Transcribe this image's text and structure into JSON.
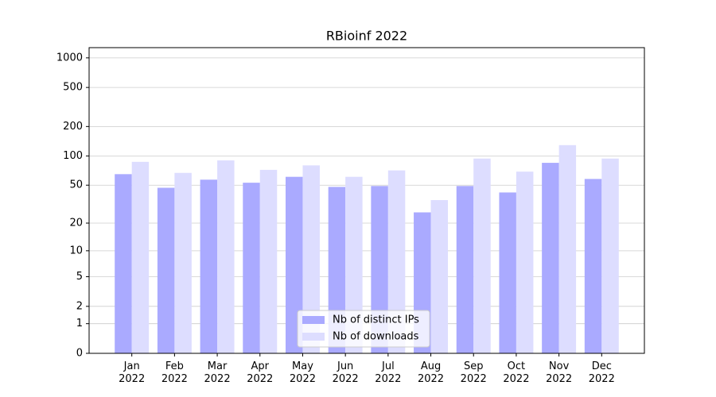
{
  "chart_data": {
    "type": "bar",
    "title": "RBioinf 2022",
    "yscale": "log1p",
    "categories": [
      "Jan 2022",
      "Feb 2022",
      "Mar 2022",
      "Apr 2022",
      "May 2022",
      "Jun 2022",
      "Jul 2022",
      "Aug 2022",
      "Sep 2022",
      "Oct 2022",
      "Nov 2022",
      "Dec 2022"
    ],
    "series": [
      {
        "name": "Nb of distinct IPs",
        "color": "#aaaaff",
        "values": [
          65,
          47,
          57,
          53,
          61,
          48,
          49,
          26,
          49,
          42,
          85,
          58
        ]
      },
      {
        "name": "Nb of downloads",
        "color": "#ddddff",
        "values": [
          87,
          67,
          90,
          72,
          80,
          61,
          71,
          35,
          94,
          69,
          129,
          94
        ]
      }
    ],
    "ylim": [
      0,
      1270
    ],
    "yticks": [
      0,
      1,
      2,
      5,
      10,
      20,
      50,
      100,
      200,
      500,
      1000
    ],
    "grid": true,
    "legend": "lower center"
  }
}
